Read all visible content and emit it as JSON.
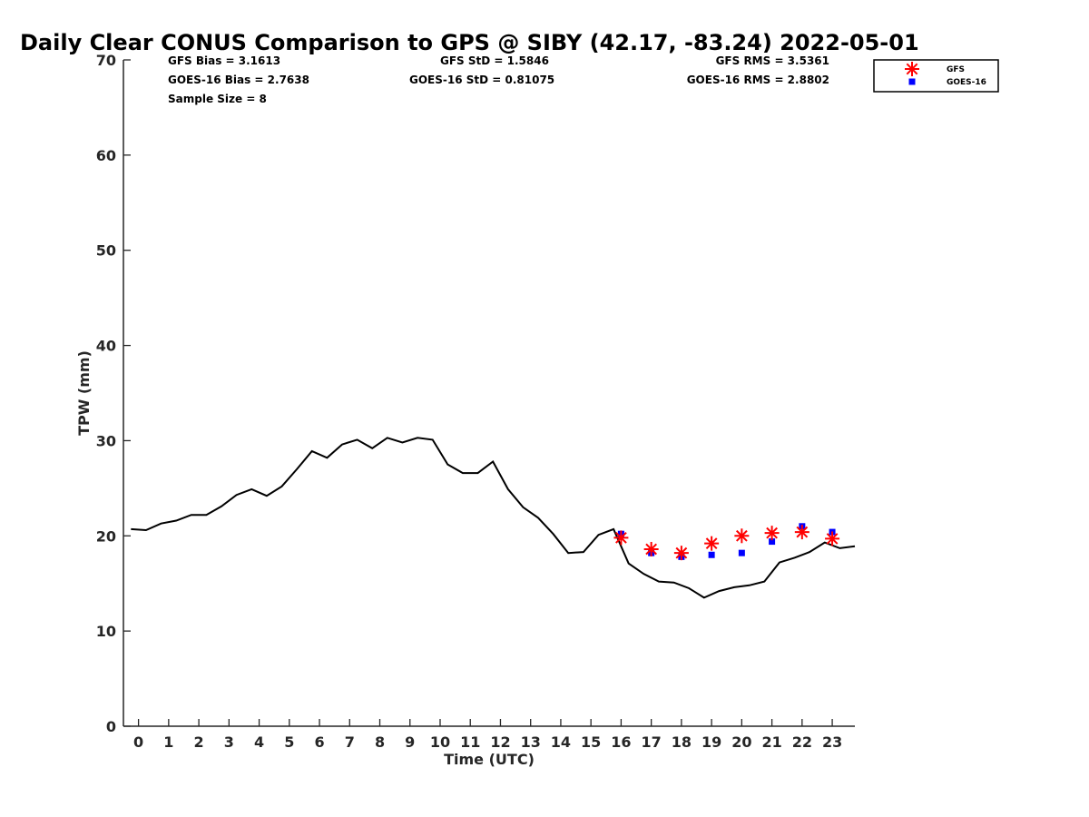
{
  "chart_data": {
    "type": "line",
    "title": "Daily Clear CONUS Comparison to GPS @ SIBY (42.17, -83.24) 2022-05-01",
    "xlabel": "Time (UTC)",
    "ylabel": "TPW (mm)",
    "xlim": [
      -0.5,
      23.75
    ],
    "ylim": [
      0,
      70
    ],
    "xticks": [
      "0",
      "1",
      "2",
      "3",
      "4",
      "5",
      "6",
      "7",
      "8",
      "9",
      "10",
      "11",
      "12",
      "13",
      "14",
      "15",
      "16",
      "17",
      "18",
      "19",
      "20",
      "21",
      "22",
      "23"
    ],
    "yticks": [
      "0",
      "10",
      "20",
      "30",
      "40",
      "50",
      "60",
      "70"
    ],
    "grid": false,
    "legend_position": "top-right",
    "stats": {
      "gfs_bias": "GFS Bias = 3.1613",
      "goes_bias": "GOES-16 Bias = 2.7638",
      "sample_size": "Sample Size = 8",
      "gfs_std": "GFS StD = 1.5846",
      "goes_std": "GOES-16 StD = 0.81075",
      "gfs_rms": "GFS RMS = 3.5361",
      "goes_rms": "GOES-16 RMS = 2.8802"
    },
    "series": [
      {
        "kind": "line",
        "color": "#000000",
        "x": [
          -0.25,
          0.25,
          0.75,
          1.25,
          1.75,
          2.25,
          2.75,
          3.25,
          3.75,
          4.25,
          4.75,
          5.25,
          5.75,
          6.25,
          6.75,
          7.25,
          7.75,
          8.25,
          8.75,
          9.25,
          9.75,
          10.25,
          10.75,
          11.25,
          11.75,
          12.25,
          12.75,
          13.25,
          13.75,
          14.25,
          14.75,
          15.25,
          15.75,
          16.25,
          16.75,
          17.25,
          17.75,
          18.25,
          18.75,
          19.25,
          19.75,
          20.25,
          20.75,
          21.25,
          21.75,
          22.25,
          22.75,
          23.25,
          23.75
        ],
        "y": [
          20.7,
          20.6,
          21.3,
          21.6,
          22.2,
          22.2,
          23.1,
          24.3,
          24.9,
          24.2,
          25.2,
          27.0,
          28.9,
          28.2,
          29.6,
          30.1,
          29.2,
          30.3,
          29.8,
          30.3,
          30.1,
          27.5,
          26.6,
          26.6,
          27.8,
          24.9,
          23.0,
          21.9,
          20.2,
          18.2,
          18.3,
          20.1,
          20.7,
          17.1,
          16.0,
          15.2,
          15.1,
          14.5,
          13.5,
          14.2,
          14.6,
          14.8,
          15.2,
          17.2,
          17.7,
          18.3,
          19.3,
          18.7,
          18.9
        ]
      },
      {
        "name": "GFS",
        "kind": "scatter",
        "marker": "asterisk",
        "color": "#ff0000",
        "x": [
          16,
          17,
          18,
          19,
          20,
          21,
          22,
          23
        ],
        "y": [
          19.8,
          18.6,
          18.2,
          19.2,
          20.0,
          20.3,
          20.4,
          19.7
        ]
      },
      {
        "name": "GOES-16",
        "kind": "scatter",
        "marker": "square",
        "color": "#0000ff",
        "x": [
          16,
          17,
          18,
          19,
          20,
          21,
          22,
          23
        ],
        "y": [
          20.2,
          18.2,
          17.8,
          18.0,
          18.2,
          19.4,
          21.0,
          20.4
        ]
      }
    ]
  }
}
